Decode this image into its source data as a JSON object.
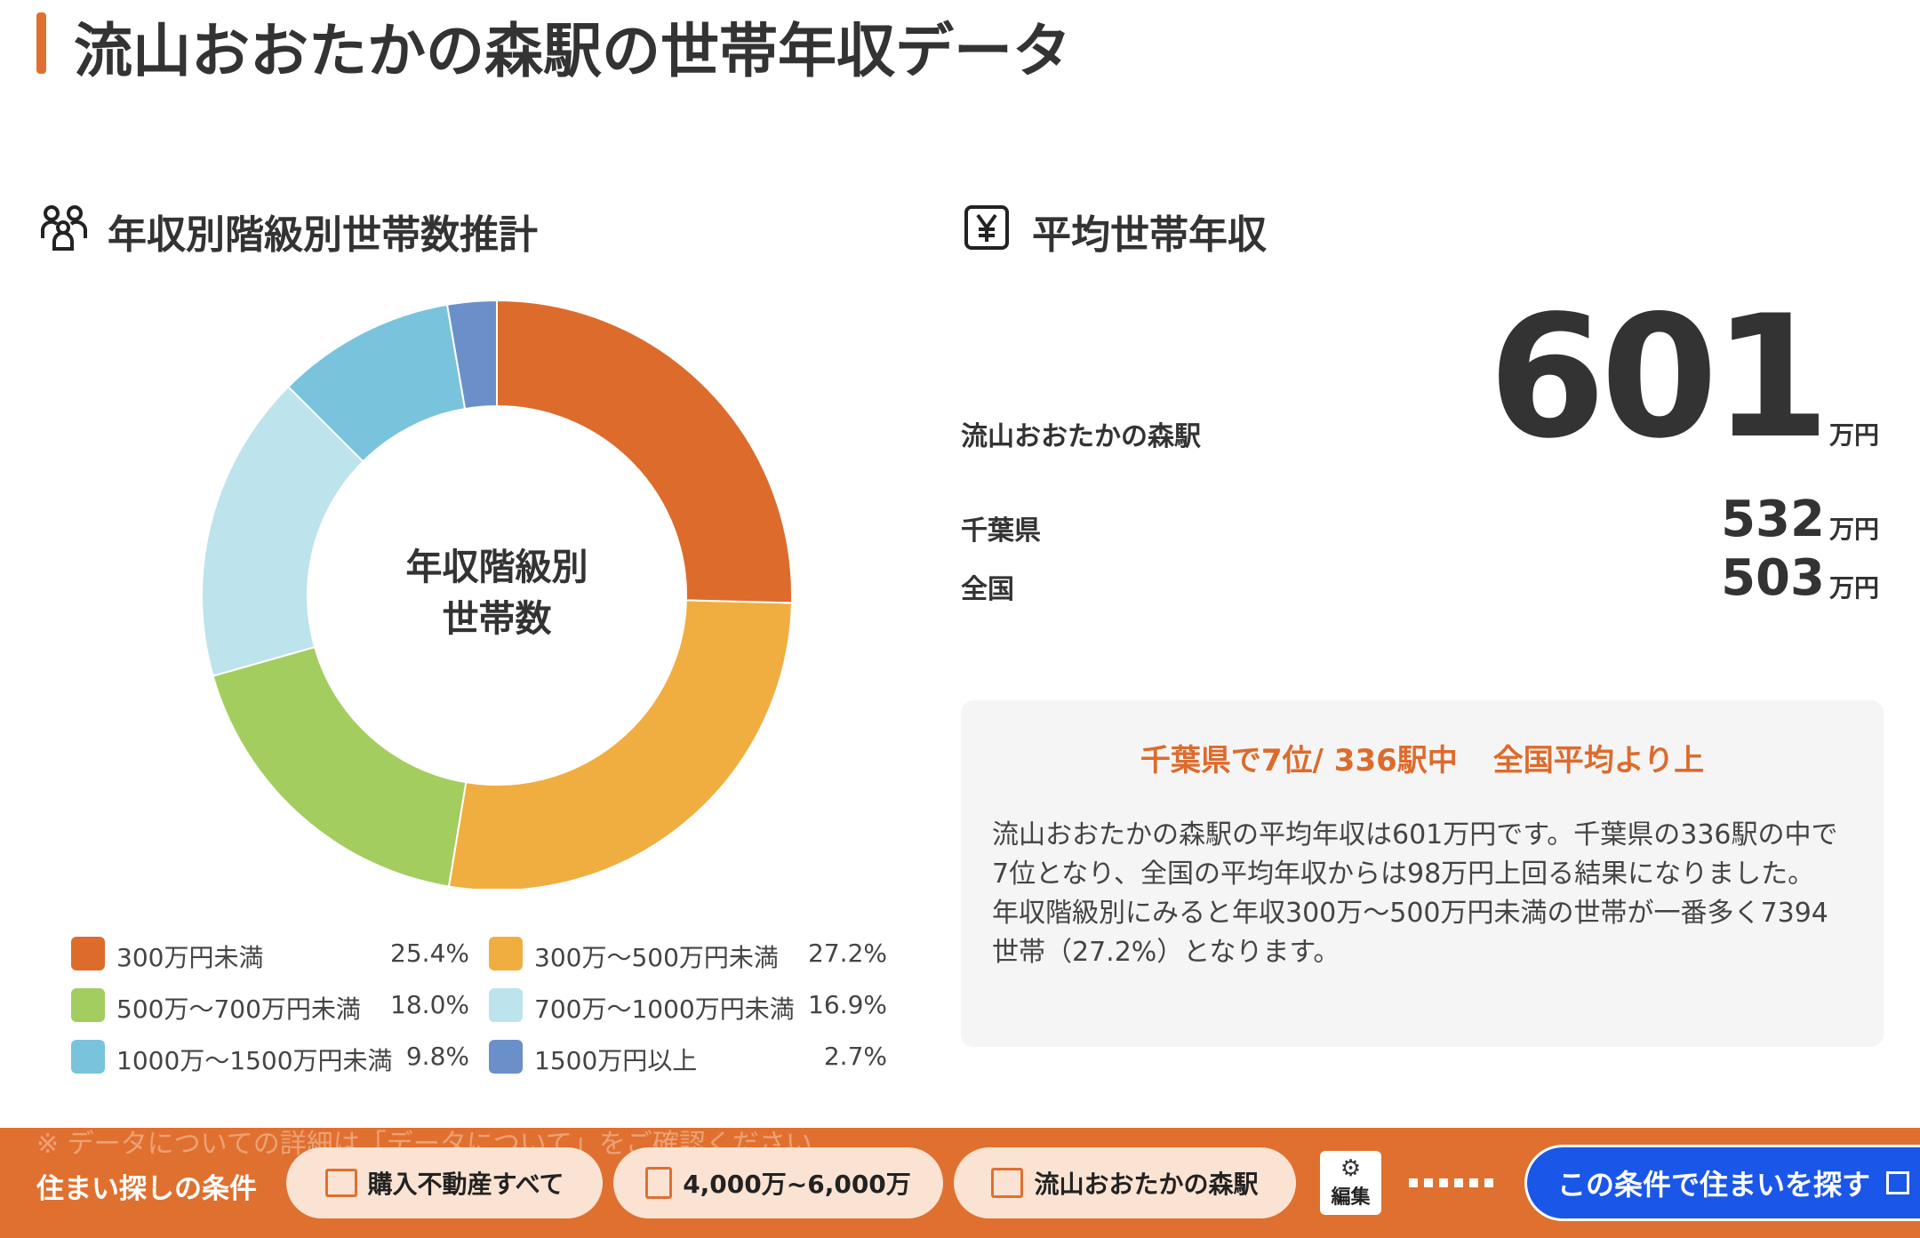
{
  "header": {
    "title": "流山おおたかの森駅の世帯年収データ"
  },
  "distribution": {
    "heading": "年収別階級別世帯数推計"
  },
  "chart_data": {
    "type": "donut",
    "center_label": [
      "年収階級別",
      "世帯数"
    ],
    "categories": [
      "300万円未満",
      "300万〜500万円未満",
      "500万〜700万円未満",
      "700万〜1000万円未満",
      "1000万〜1500万円未満",
      "1500万円以上"
    ],
    "values": [
      25.4,
      27.2,
      18.0,
      16.9,
      9.8,
      2.7
    ],
    "value_labels": [
      "25.4%",
      "27.2%",
      "18.0%",
      "16.9%",
      "9.8%",
      "2.7%"
    ],
    "colors": [
      "#dd6b2c",
      "#f0ae40",
      "#a3cd5f",
      "#bde3ec",
      "#79c4dc",
      "#6b90c9"
    ]
  },
  "average": {
    "heading": "平均世帯年収",
    "rows": [
      {
        "label": "流山おおたかの森駅",
        "value": "601",
        "unit": "万円"
      },
      {
        "label": "千葉県",
        "value": "532",
        "unit": "万円"
      },
      {
        "label": "全国",
        "value": "503",
        "unit": "万円"
      }
    ],
    "summary": {
      "rank": "千葉県で7位/ 336駅中",
      "comparison": "全国平均より上",
      "paragraphs": [
        "流山おおたかの森駅の平均年収は601万円です。千葉県の336駅の中で7位となり、全国の平均年収からは98万円上回る結果になりました。",
        "年収階級別にみると年収300万〜500万円未満の世帯が一番多く7394世帯（27.2%）となります。"
      ]
    }
  },
  "note": "※ データについての詳細は「データについて」をご確認ください",
  "footer": {
    "label": "住まい探しの条件",
    "conditions": [
      "購入不動産すべて",
      "4,000万~6,000万",
      "流山おおたかの森駅"
    ],
    "edit": "編集",
    "search": "この条件で住まいを探す"
  }
}
